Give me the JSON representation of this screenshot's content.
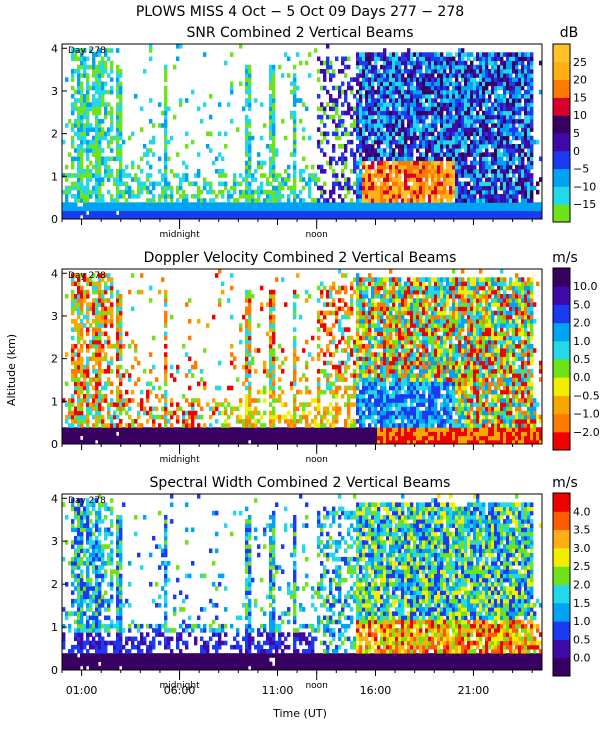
{
  "header": {
    "title": "PLOWS MISS    4 Oct −  5 Oct 09 Days 277 − 278"
  },
  "shared": {
    "ylabel": "Altitude (km)",
    "xlabel": "Time (UT)",
    "time_tick_labels": [
      {
        "t": 1,
        "label": "01:00"
      },
      {
        "t": 6,
        "label": "06:00"
      },
      {
        "t": 11,
        "label": "11:00"
      },
      {
        "t": 16,
        "label": "16:00"
      },
      {
        "t": 21,
        "label": "21:00"
      }
    ],
    "markers": [
      {
        "t": 6,
        "label": "midnight"
      },
      {
        "t": 13,
        "label": "noon"
      }
    ],
    "day_label": "Day 278",
    "xlim": [
      0,
      24.5
    ],
    "ylim": [
      0,
      4.1
    ],
    "y_ticks": [
      0,
      1,
      2,
      3,
      4
    ]
  },
  "chart_data": [
    {
      "type": "heatmap",
      "title": "SNR Combined 2 Vertical Beams",
      "unit": "dB",
      "colorbar": {
        "colors": [
          "#6fe21a",
          "#23d8e8",
          "#00a2f2",
          "#1a3bf2",
          "#3f0aa8",
          "#380060",
          "#d7002c",
          "#ff7a00",
          "#ffae14",
          "#ffc229"
        ],
        "tick_labels": [
          "−15",
          "−10",
          "−5",
          "0",
          "5",
          "10",
          "15",
          "20",
          "25"
        ]
      }
    },
    {
      "type": "heatmap",
      "title": "Doppler Velocity Combined 2 Vertical Beams",
      "unit": "m/s",
      "colorbar": {
        "colors": [
          "#f20000",
          "#ff7b00",
          "#f7a800",
          "#f2ee00",
          "#6fe21a",
          "#23d8e8",
          "#00a2f2",
          "#1a3bf2",
          "#3f0aa8",
          "#380060"
        ],
        "tick_labels": [
          "−2.0",
          "−1.0",
          "−0.5",
          "0.0",
          "0.5",
          "1.0",
          "2.0",
          "5.0",
          "10.0"
        ]
      }
    },
    {
      "type": "heatmap",
      "title": "Spectral Width Combined 2 Vertical Beams",
      "unit": "m/s",
      "colorbar": {
        "colors": [
          "#380060",
          "#3f0aa8",
          "#1a3bf2",
          "#00a2f2",
          "#23d8e8",
          "#6fe21a",
          "#f2ee00",
          "#ffae14",
          "#ff5a00",
          "#f20000"
        ],
        "tick_labels": [
          "0.0",
          "0.5",
          "1.0",
          "1.5",
          "2.0",
          "2.5",
          "3.0",
          "3.5",
          "4.0"
        ]
      }
    }
  ]
}
